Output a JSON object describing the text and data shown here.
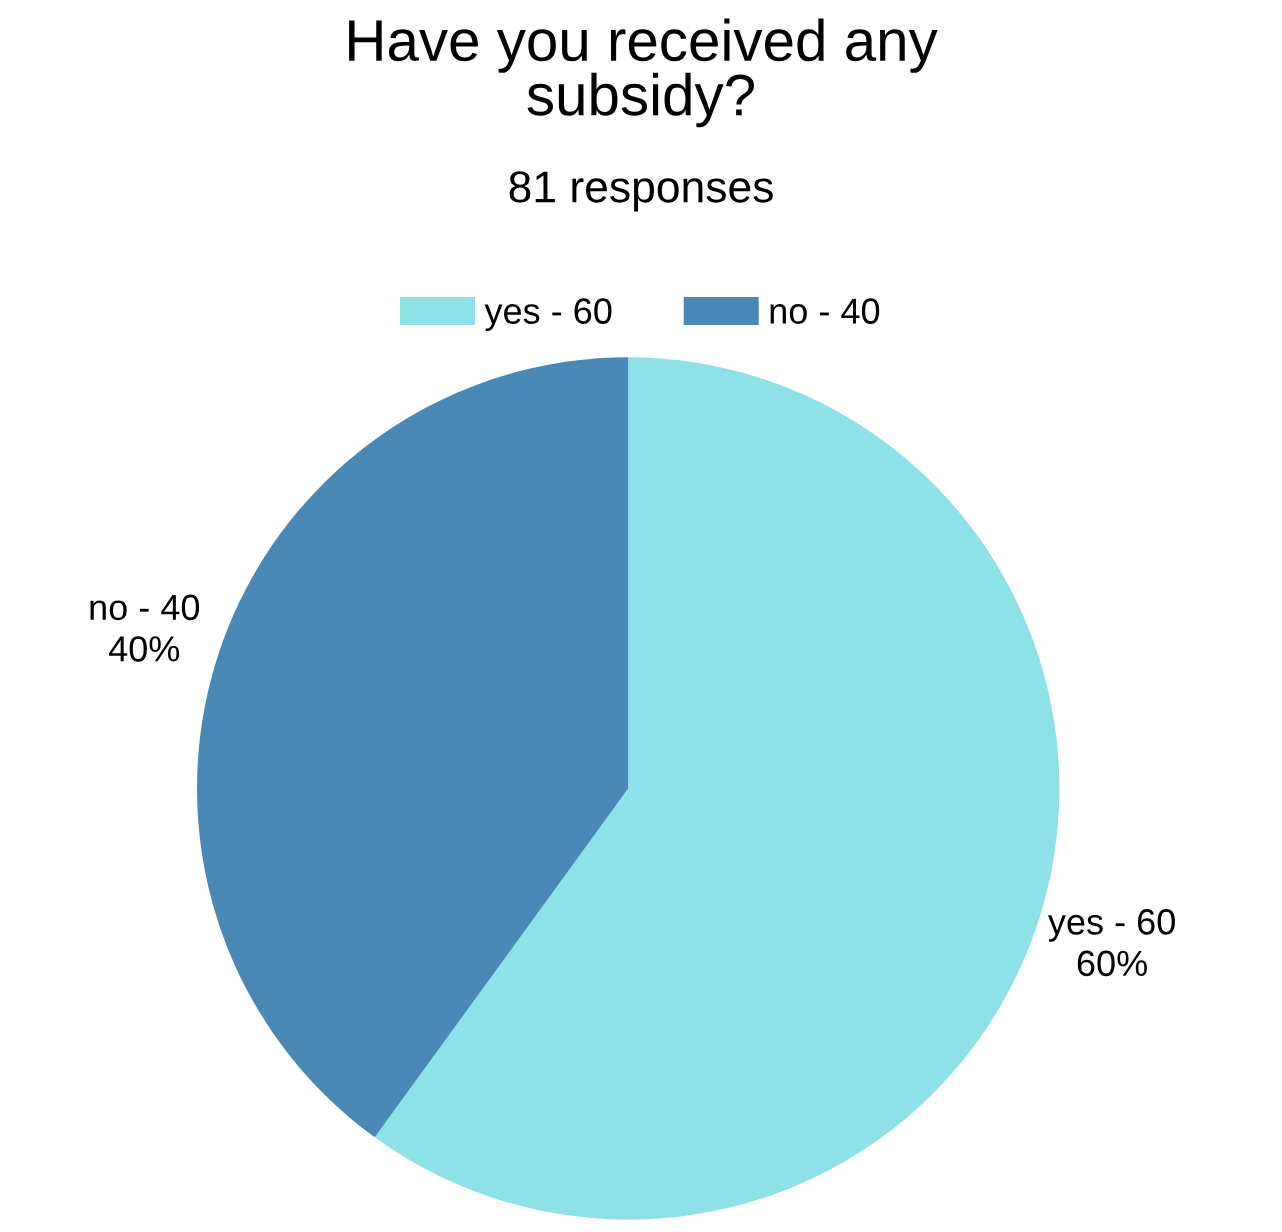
{
  "chart_data": {
    "type": "pie",
    "title": "Have you received any\nsubsidy?",
    "subtitle": "81 responses",
    "categories": [
      "yes - 60",
      "no - 40"
    ],
    "values": [
      60,
      40
    ],
    "colors": [
      "#8ee1e6",
      "#4a89b5"
    ],
    "value_labels": [
      "60%",
      "40%"
    ],
    "legend": "top"
  }
}
